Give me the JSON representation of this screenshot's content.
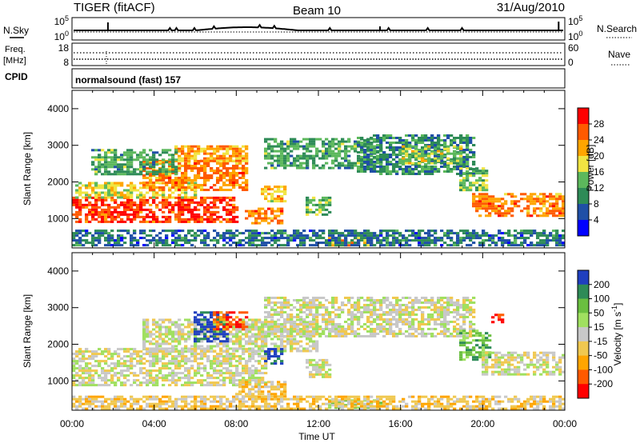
{
  "header": {
    "radar": "TIGER (fitACF)",
    "beam": "Beam 10",
    "date": "31/Aug/2010"
  },
  "strip_nsky": {
    "left_label": "N.Sky",
    "left_ticks": [
      "10^5",
      "10^0"
    ],
    "right_label": "N.Search",
    "right_ticks": [
      "10^5",
      "10^0"
    ]
  },
  "strip_freq": {
    "left_label_line1": "Freq.",
    "left_label_line2": "[MHz]",
    "left_ticks": [
      "18",
      "8"
    ],
    "right_label": "Nave",
    "right_ticks": [
      "60",
      "0"
    ]
  },
  "strip_cpid": {
    "label": "CPID",
    "program": "normalsound (fast) 157"
  },
  "time_axis": {
    "label": "Time UT",
    "ticks": [
      "00:00",
      "04:00",
      "08:00",
      "12:00",
      "16:00",
      "20:00",
      "00:00"
    ]
  },
  "chart_data": [
    {
      "type": "heatmap",
      "name": "power",
      "ylabel": "Slant Range [km]",
      "xlim": [
        0,
        24
      ],
      "ylim": [
        200,
        4500
      ],
      "yticks": [
        "1000",
        "2000",
        "3000",
        "4000"
      ],
      "colorbar_label": "Power [dB]",
      "colorbar_ticks": [
        "4",
        "8",
        "12",
        "16",
        "20",
        "24",
        "28"
      ],
      "colors": [
        "#0000ff",
        "#1f4fa6",
        "#2e8b57",
        "#5cb85c",
        "#f0e442",
        "#ffa500",
        "#ff5a00",
        "#ff0000"
      ],
      "regions": [
        {
          "t0": 0.0,
          "t1": 8.0,
          "r0": 900,
          "r1": 1600,
          "level": 6.5
        },
        {
          "t0": 0.3,
          "t1": 6.0,
          "r0": 1600,
          "r1": 2000,
          "level": 4.0
        },
        {
          "t0": 3.5,
          "t1": 8.5,
          "r0": 1800,
          "r1": 2600,
          "level": 5.5
        },
        {
          "t0": 5.0,
          "t1": 8.5,
          "r0": 2600,
          "r1": 3000,
          "level": 5.0
        },
        {
          "t0": 1.0,
          "t1": 5.0,
          "r0": 2200,
          "r1": 2900,
          "level": 2.5
        },
        {
          "t0": 8.5,
          "t1": 10.2,
          "r0": 900,
          "r1": 1300,
          "level": 5.5
        },
        {
          "t0": 9.3,
          "t1": 10.3,
          "r0": 1500,
          "r1": 1900,
          "level": 4.5
        },
        {
          "t0": 11.5,
          "t1": 12.5,
          "r0": 1100,
          "r1": 1600,
          "level": 3.0
        },
        {
          "t0": 9.5,
          "t1": 15.0,
          "r0": 2400,
          "r1": 3200,
          "level": 2.5
        },
        {
          "t0": 14.0,
          "t1": 19.5,
          "r0": 2200,
          "r1": 3300,
          "level": 2.0
        },
        {
          "t0": 16.0,
          "t1": 19.0,
          "r0": 2500,
          "r1": 3000,
          "level": 3.5
        },
        {
          "t0": 19.0,
          "t1": 20.2,
          "r0": 1800,
          "r1": 2400,
          "level": 3.0
        },
        {
          "t0": 19.5,
          "t1": 24.0,
          "r0": 1100,
          "r1": 1700,
          "level": 5.5
        },
        {
          "t0": 12.5,
          "t1": 14.5,
          "r0": 300,
          "r1": 500,
          "level": 5.0
        },
        {
          "t0": 0.0,
          "t1": 24.0,
          "r0": 250,
          "r1": 700,
          "level": 1.5
        }
      ]
    },
    {
      "type": "heatmap",
      "name": "velocity",
      "ylabel": "Slant Range [km]",
      "xlim": [
        0,
        24
      ],
      "ylim": [
        200,
        4500
      ],
      "yticks": [
        "1000",
        "2000",
        "3000",
        "4000"
      ],
      "colorbar_label": "Velocity [m s^-1]",
      "colorbar_ticks": [
        "200",
        "100",
        "50",
        "15",
        "-15",
        "-50",
        "-100",
        "-200"
      ],
      "colors": [
        "#1f3fbf",
        "#2e8b57",
        "#6abf40",
        "#a0e060",
        "#c8c8c8",
        "#f0c850",
        "#ffa500",
        "#ff5a00",
        "#ff0000"
      ],
      "regions": [
        {
          "t0": 0.0,
          "t1": 9.5,
          "r0": 900,
          "r1": 1900,
          "level": 4
        },
        {
          "t0": 3.5,
          "t1": 12.0,
          "r0": 1800,
          "r1": 2700,
          "level": 4
        },
        {
          "t0": 6.0,
          "t1": 7.5,
          "r0": 2100,
          "r1": 2900,
          "level": 0
        },
        {
          "t0": 7.0,
          "t1": 8.5,
          "r0": 2400,
          "r1": 2900,
          "level": 7
        },
        {
          "t0": 9.5,
          "t1": 10.2,
          "r0": 1500,
          "r1": 1900,
          "level": 0
        },
        {
          "t0": 8.0,
          "t1": 10.3,
          "r0": 500,
          "r1": 1000,
          "level": 5
        },
        {
          "t0": 9.5,
          "t1": 19.5,
          "r0": 2200,
          "r1": 3300,
          "level": 4
        },
        {
          "t0": 11.5,
          "t1": 12.5,
          "r0": 1100,
          "r1": 1600,
          "level": 4
        },
        {
          "t0": 12.5,
          "t1": 15.0,
          "r0": 300,
          "r1": 500,
          "level": 3
        },
        {
          "t0": 19.0,
          "t1": 20.4,
          "r0": 1600,
          "r1": 2400,
          "level": 2
        },
        {
          "t0": 20.0,
          "t1": 24.0,
          "r0": 1200,
          "r1": 1800,
          "level": 4
        },
        {
          "t0": 20.5,
          "t1": 21.0,
          "r0": 2600,
          "r1": 2900,
          "level": 8
        },
        {
          "t0": 0.0,
          "t1": 24.0,
          "r0": 250,
          "r1": 600,
          "level": 5
        }
      ]
    }
  ]
}
